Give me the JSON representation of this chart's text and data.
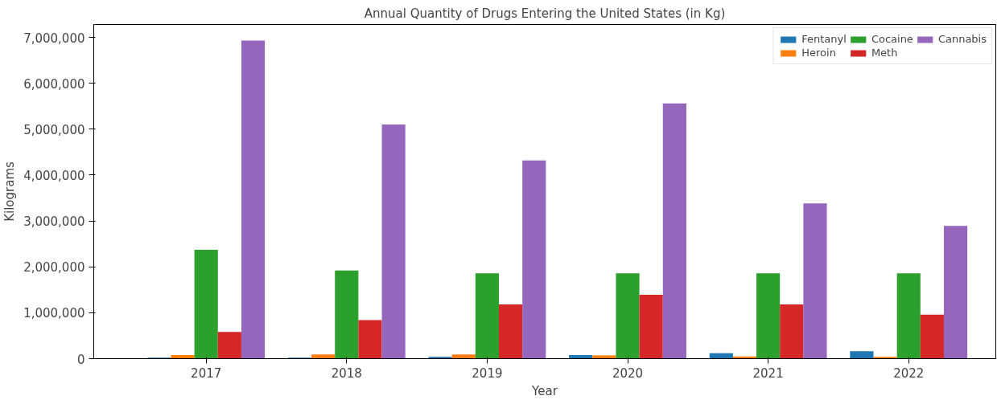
{
  "chart_data": {
    "type": "bar",
    "title": "Annual Quantity of Drugs Entering the United States (in Kg)",
    "xlabel": "Year",
    "ylabel": "Kilograms",
    "categories": [
      "2017",
      "2018",
      "2019",
      "2020",
      "2021",
      "2022"
    ],
    "series": [
      {
        "name": "Fentanyl",
        "color": "#1f77b4",
        "values": [
          20000,
          20000,
          40000,
          80000,
          120000,
          160000
        ]
      },
      {
        "name": "Heroin",
        "color": "#ff7f0e",
        "values": [
          80000,
          90000,
          90000,
          70000,
          50000,
          40000
        ]
      },
      {
        "name": "Cocaine",
        "color": "#2ca02c",
        "values": [
          2370000,
          1920000,
          1860000,
          1860000,
          1860000,
          1860000
        ]
      },
      {
        "name": "Meth",
        "color": "#d62728",
        "values": [
          580000,
          840000,
          1180000,
          1390000,
          1180000,
          960000
        ]
      },
      {
        "name": "Cannabis",
        "color": "#9467bd",
        "values": [
          6930000,
          5100000,
          4320000,
          5560000,
          3380000,
          2890000
        ]
      }
    ],
    "ylim": [
      0,
      7280000
    ],
    "yticks": [
      {
        "value": 0,
        "label": "0"
      },
      {
        "value": 1000000,
        "label": "1,000,000"
      },
      {
        "value": 2000000,
        "label": "2,000,000"
      },
      {
        "value": 3000000,
        "label": "3,000,000"
      },
      {
        "value": 4000000,
        "label": "4,000,000"
      },
      {
        "value": 5000000,
        "label": "5,000,000"
      },
      {
        "value": 6000000,
        "label": "6,000,000"
      },
      {
        "value": 7000000,
        "label": "7,000,000"
      }
    ],
    "legend": "top right",
    "grid": false
  }
}
